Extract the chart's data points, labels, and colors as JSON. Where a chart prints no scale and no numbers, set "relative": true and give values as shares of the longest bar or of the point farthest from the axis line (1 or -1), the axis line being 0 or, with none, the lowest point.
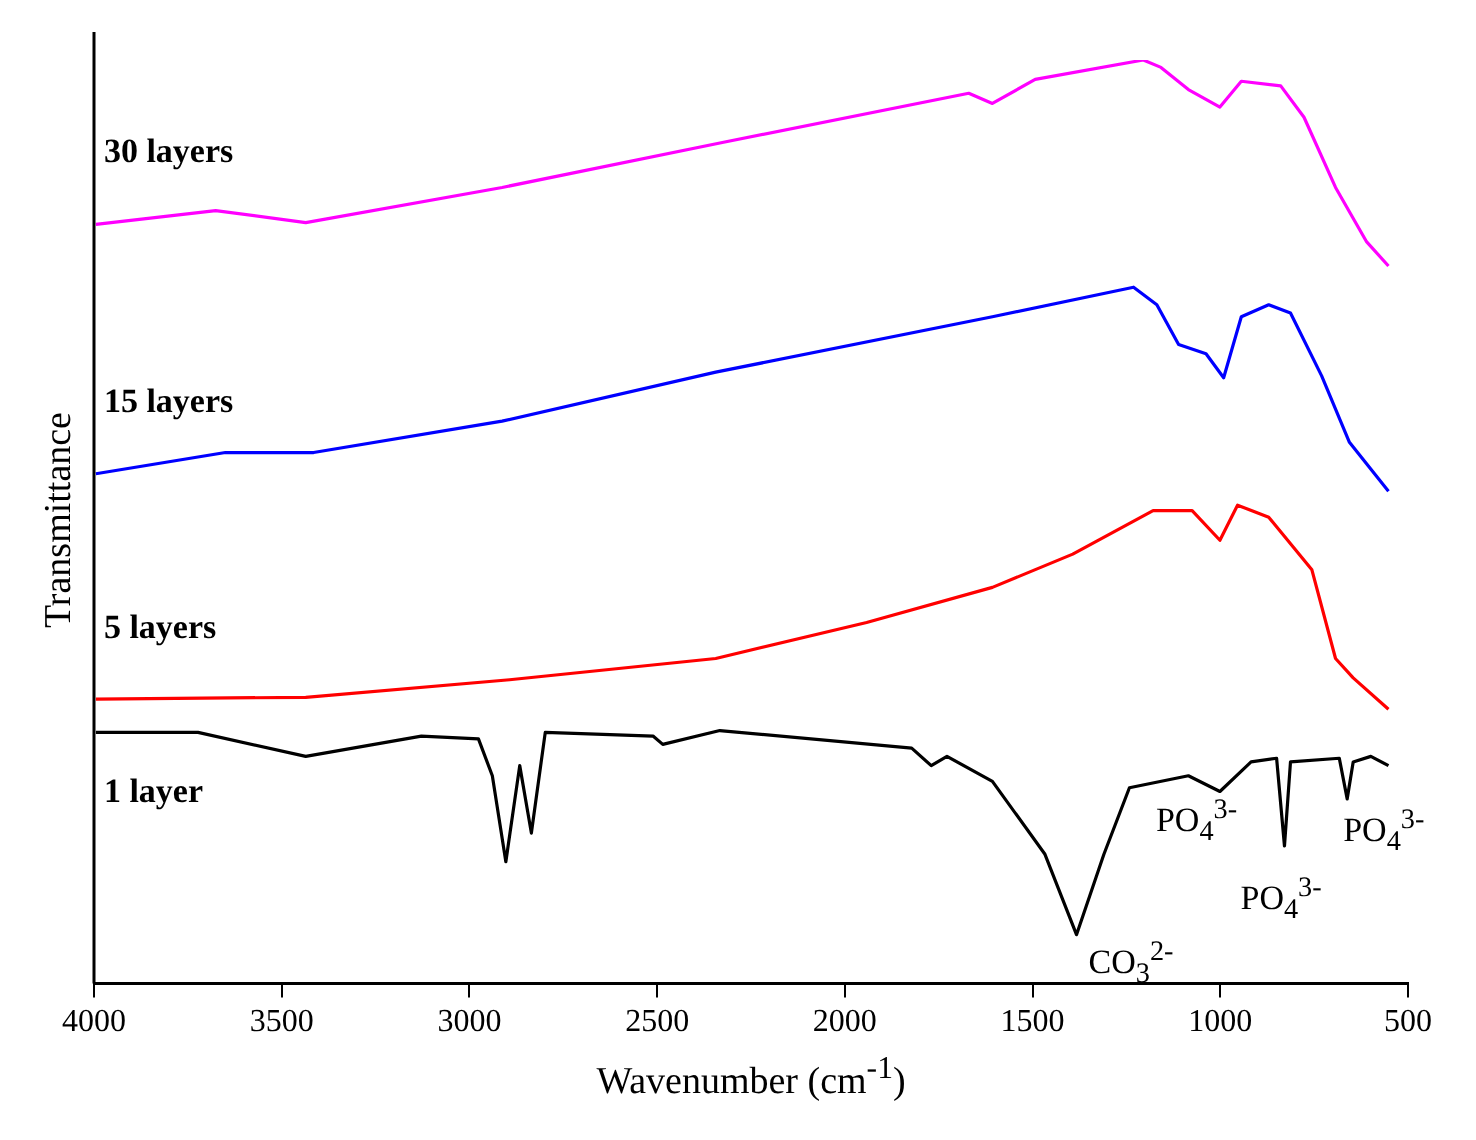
{
  "chart_data": {
    "type": "line",
    "relative": true,
    "xlabel": "Wavenumber (cm$^{-1}$)",
    "ylabel": "Transmittance",
    "xlim": [
      4000,
      500
    ],
    "xticks": [
      4000,
      3500,
      3000,
      2500,
      2000,
      1500,
      1000,
      500
    ],
    "grid": false,
    "legend": false,
    "marker": "none",
    "line_style": "solid",
    "series": [
      {
        "name": "30 layers",
        "color": "#ff00ff",
        "x": [
          3995,
          3676,
          3436,
          2913,
          2323,
          1670,
          1607,
          1493,
          1205,
          1158,
          1085,
          1001,
          944,
          839,
          777,
          693,
          610,
          552
        ],
        "values": [
          0.822,
          0.837,
          0.824,
          0.862,
          0.911,
          0.964,
          0.953,
          0.979,
          1,
          0.992,
          0.968,
          0.949,
          0.977,
          0.972,
          0.938,
          0.862,
          0.803,
          0.777
        ]
      },
      {
        "name": "15 layers",
        "color": "#0000ff",
        "x": [
          3995,
          3650,
          3415,
          2913,
          2344,
          1607,
          1231,
          1169,
          1111,
          1038,
          991,
          944,
          871,
          813,
          730,
          656,
          552
        ],
        "values": [
          0.552,
          0.575,
          0.575,
          0.609,
          0.662,
          0.722,
          0.754,
          0.735,
          0.692,
          0.682,
          0.656,
          0.722,
          0.735,
          0.726,
          0.658,
          0.586,
          0.533
        ]
      },
      {
        "name": "5 layers",
        "color": "#ff0000",
        "x": [
          3995,
          3436,
          2893,
          2344,
          1942,
          1607,
          1393,
          1179,
          1075,
          1001,
          954,
          871,
          756,
          693,
          646,
          552
        ],
        "values": [
          0.308,
          0.31,
          0.329,
          0.352,
          0.391,
          0.429,
          0.465,
          0.512,
          0.512,
          0.48,
          0.518,
          0.505,
          0.448,
          0.352,
          0.331,
          0.297
        ]
      },
      {
        "name": "1 layer",
        "color": "#000000",
        "x": [
          3995,
          3723,
          3436,
          3128,
          2976,
          2939,
          2903,
          2866,
          2835,
          2798,
          2511,
          2485,
          2333,
          1822,
          1770,
          1728,
          1607,
          1467,
          1383,
          1310,
          1242,
          1085,
          1001,
          918,
          850,
          829,
          813,
          683,
          662,
          646,
          599,
          552
        ],
        "values": [
          0.272,
          0.272,
          0.246,
          0.268,
          0.265,
          0.225,
          0.132,
          0.236,
          0.163,
          0.272,
          0.268,
          0.259,
          0.274,
          0.255,
          0.236,
          0.246,
          0.219,
          0.14,
          0.053,
          0.14,
          0.212,
          0.225,
          0.208,
          0.24,
          0.244,
          0.149,
          0.24,
          0.244,
          0.2,
          0.24,
          0.246,
          0.236
        ]
      }
    ],
    "annotations": [
      {
        "text": "CO$_{3}$$^{2-}$",
        "x": 1383,
        "y": 0.053
      },
      {
        "text": "PO$_{4}$$^{3-}$",
        "x": 1001,
        "y": 0.208
      },
      {
        "text": "PO$_{4}$$^{3-}$",
        "x": 829,
        "y": 0.149
      },
      {
        "text": "PO$_{4}$$^{3-}$",
        "x": 662,
        "y": 0.2
      }
    ]
  }
}
